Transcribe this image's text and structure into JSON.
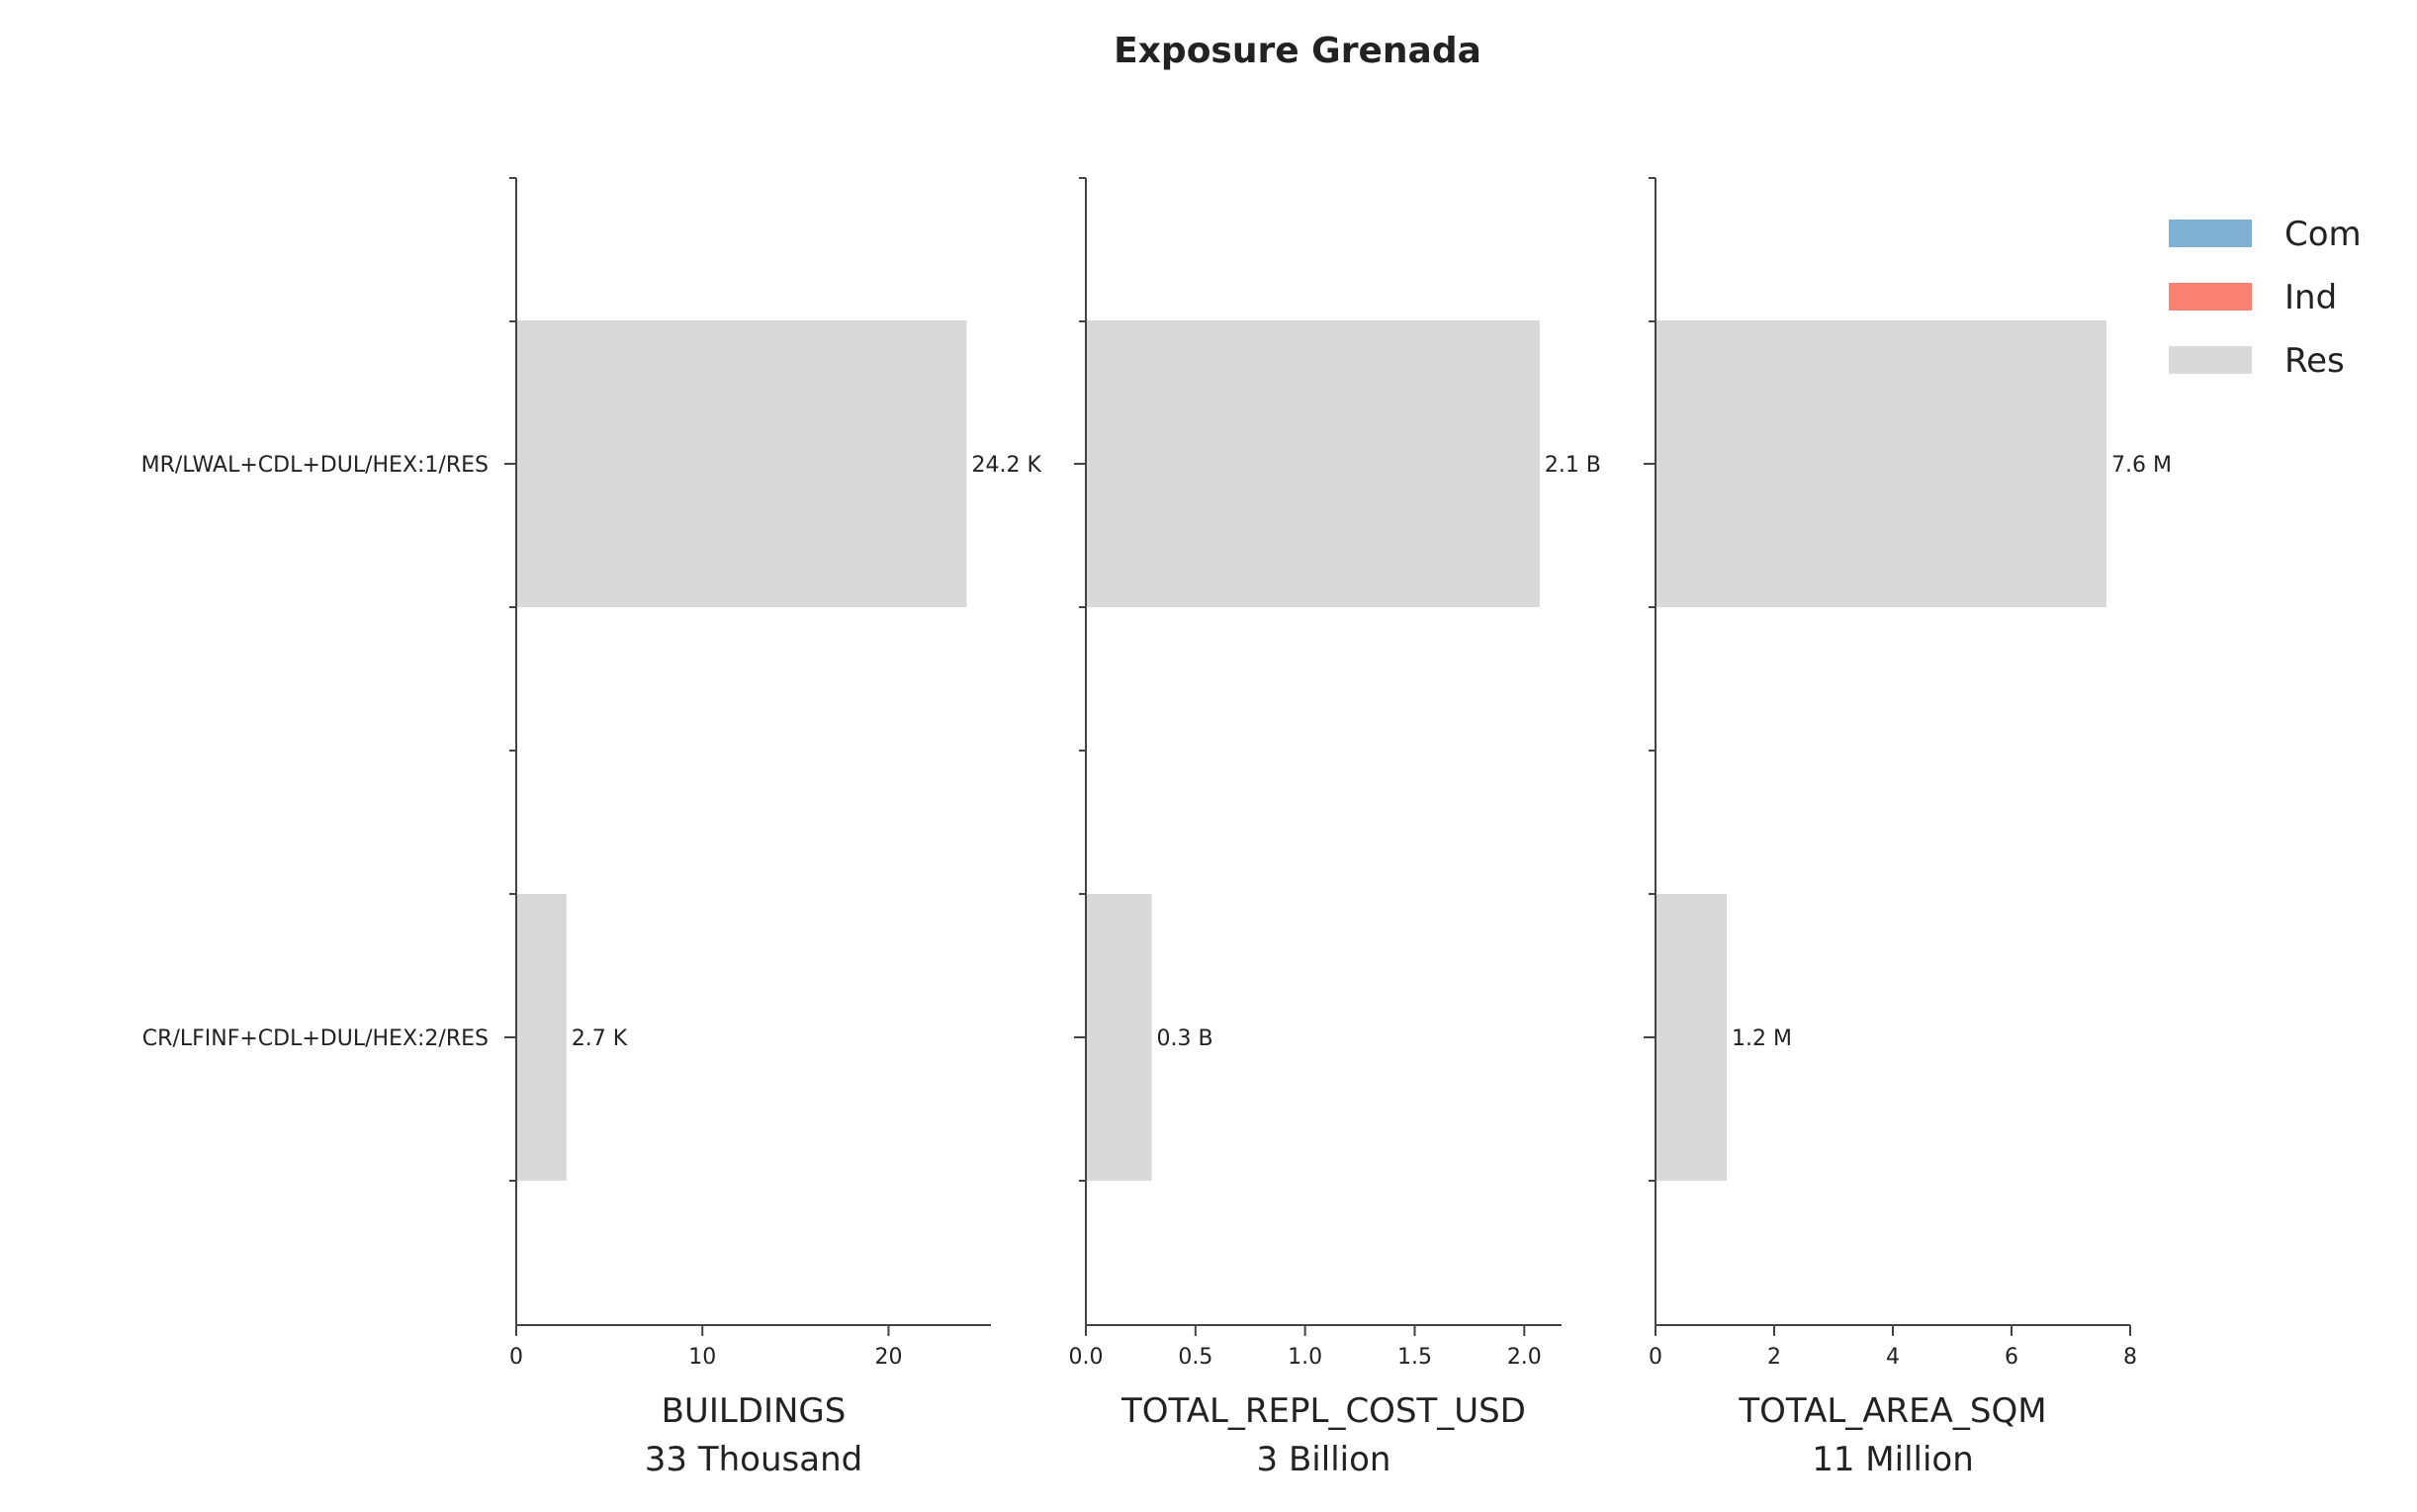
{
  "chart_data": {
    "type": "bar",
    "orientation": "horizontal",
    "title": "Exposure Grenada",
    "categories": [
      "MR/LWAL+CDL+DUL/HEX:1/RES",
      "CR/LFINF+CDL+DUL/HEX:2/RES"
    ],
    "legend": {
      "placement": "top-right",
      "entries": [
        {
          "name": "Com",
          "color": "#7fb0d4"
        },
        {
          "name": "Ind",
          "color": "#fa8072"
        },
        {
          "name": "Res",
          "color": "#d9d9d9"
        }
      ]
    },
    "panels": [
      {
        "xlabel": "BUILDINGS",
        "subtitle": "33 Thousand",
        "xlim": [
          0,
          25.5
        ],
        "xticks": [
          0,
          10,
          20
        ],
        "xtick_labels": [
          "0",
          "10",
          "20"
        ],
        "series": [
          {
            "name": "Res",
            "values": [
              24.2,
              2.7
            ]
          }
        ],
        "data_labels": [
          "24.2 K",
          "2.7 K"
        ]
      },
      {
        "xlabel": "TOTAL_REPL_COST_USD",
        "subtitle": "3 Billion",
        "xlim": [
          0,
          2.17
        ],
        "xticks": [
          0.0,
          0.5,
          1.0,
          1.5,
          2.0
        ],
        "xtick_labels": [
          "0.0",
          "0.5",
          "1.0",
          "1.5",
          "2.0"
        ],
        "series": [
          {
            "name": "Res",
            "values": [
              2.07,
              0.3
            ]
          }
        ],
        "data_labels": [
          "2.1 B",
          "0.3 B"
        ]
      },
      {
        "xlabel": "TOTAL_AREA_SQM",
        "subtitle": "11 Million",
        "xlim": [
          0,
          8
        ],
        "xticks": [
          0,
          2,
          4,
          6,
          8
        ],
        "xtick_labels": [
          "0",
          "2",
          "4",
          "6",
          "8"
        ],
        "series": [
          {
            "name": "Res",
            "values": [
              7.6,
              1.2
            ]
          }
        ],
        "data_labels": [
          "7.6 M",
          "1.2 M"
        ]
      }
    ]
  }
}
